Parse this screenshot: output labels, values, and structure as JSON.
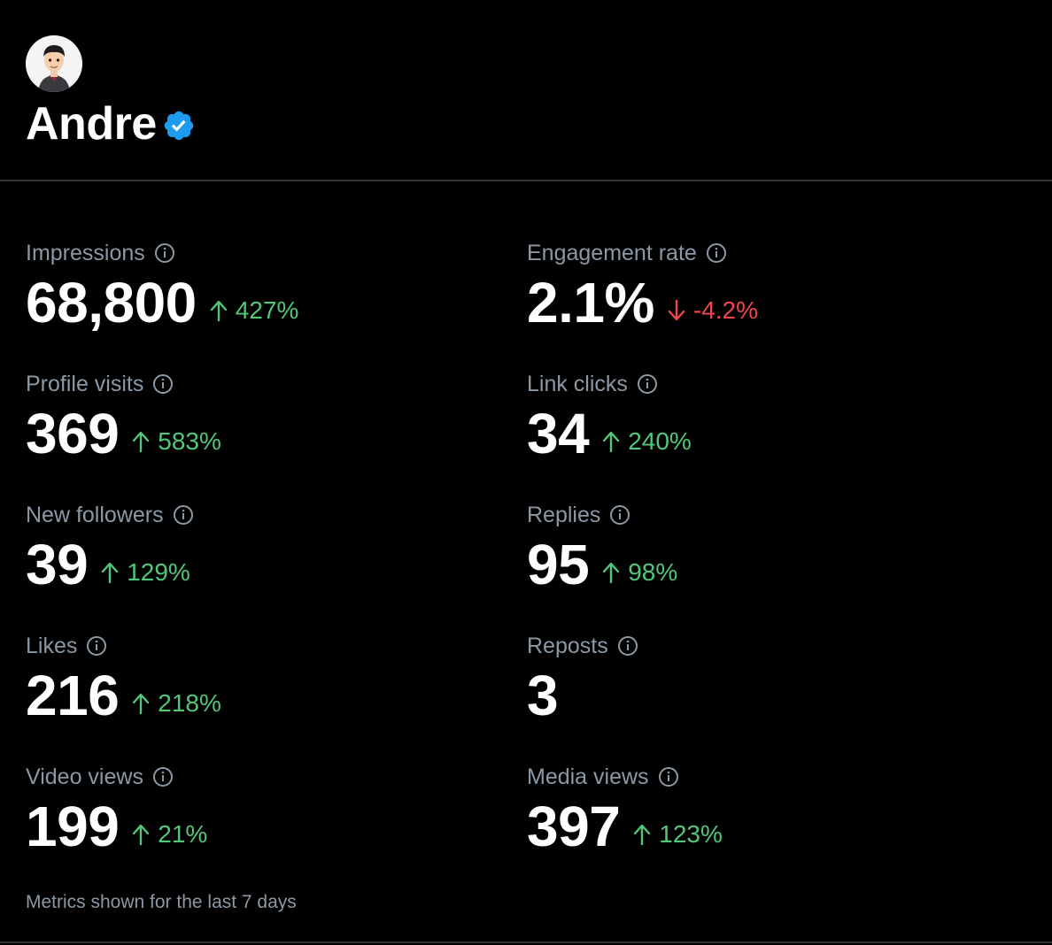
{
  "profile": {
    "name": "Andre",
    "verified": true,
    "avatar_icon": "memoji-avatar"
  },
  "metrics": [
    {
      "label": "Impressions",
      "value": "68,800",
      "change": "427%",
      "direction": "up"
    },
    {
      "label": "Engagement rate",
      "value": "2.1%",
      "change": "-4.2%",
      "direction": "down"
    },
    {
      "label": "Profile visits",
      "value": "369",
      "change": "583%",
      "direction": "up"
    },
    {
      "label": "Link clicks",
      "value": "34",
      "change": "240%",
      "direction": "up"
    },
    {
      "label": "New followers",
      "value": "39",
      "change": "129%",
      "direction": "up"
    },
    {
      "label": "Replies",
      "value": "95",
      "change": "98%",
      "direction": "up"
    },
    {
      "label": "Likes",
      "value": "216",
      "change": "218%",
      "direction": "up"
    },
    {
      "label": "Reposts",
      "value": "3",
      "change": null,
      "direction": null
    },
    {
      "label": "Video views",
      "value": "199",
      "change": "21%",
      "direction": "up"
    },
    {
      "label": "Media views",
      "value": "397",
      "change": "123%",
      "direction": "up"
    }
  ],
  "footer": {
    "note": "Metrics shown for the last 7 days"
  },
  "colors": {
    "background": "#000000",
    "up": "#51c77a",
    "down": "#f0454c",
    "label": "#8b98a5",
    "verified": "#1d9bf0",
    "divider": "#2f3336"
  }
}
